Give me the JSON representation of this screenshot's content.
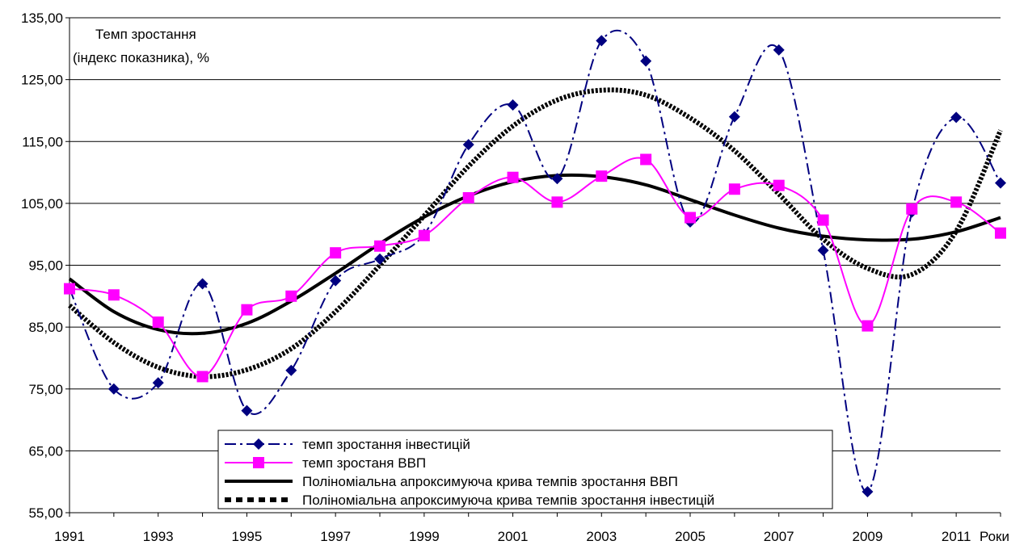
{
  "chart_data": {
    "type": "line",
    "ylabel_line1": "Темп зростання",
    "ylabel_line2": "(індекс показника), %",
    "xlabel": "Роки",
    "ylim": [
      55,
      135
    ],
    "xlim": [
      1991,
      2012
    ],
    "yticks": [
      "55,00",
      "65,00",
      "75,00",
      "85,00",
      "95,00",
      "105,00",
      "115,00",
      "125,00",
      "135,00"
    ],
    "xticks": [
      "1991",
      "1993",
      "1995",
      "1997",
      "1999",
      "2001",
      "2003",
      "2005",
      "2007",
      "2009",
      "2011"
    ],
    "grid": true,
    "legend_position": "bottom-center",
    "x": [
      1991,
      1992,
      1993,
      1994,
      1995,
      1996,
      1997,
      1998,
      1999,
      2000,
      2001,
      2002,
      2003,
      2004,
      2005,
      2006,
      2007,
      2008,
      2009,
      2010,
      2011,
      2012
    ],
    "series": [
      {
        "name": "темп зростання інвестицій",
        "color": "#000080",
        "style": "dash-dot",
        "marker": "diamond",
        "values": [
          91.2,
          75.0,
          76.0,
          92.0,
          71.5,
          78.0,
          92.5,
          96.0,
          100.0,
          114.5,
          120.9,
          109.0,
          131.3,
          128.0,
          102.0,
          119.0,
          129.8,
          97.4,
          58.4,
          103.6,
          118.9,
          108.3
        ]
      },
      {
        "name": "темп зростаня ВВП",
        "color": "#ff00ff",
        "style": "solid",
        "marker": "square",
        "values": [
          91.2,
          90.2,
          85.8,
          77.0,
          87.8,
          90.0,
          97.0,
          98.1,
          99.8,
          105.9,
          109.2,
          105.2,
          109.4,
          112.1,
          102.7,
          107.3,
          107.9,
          102.3,
          85.2,
          104.1,
          105.2,
          100.2
        ]
      },
      {
        "name": "Поліноміальна апроксимуюча крива темпів зростання ВВП",
        "color": "#000000",
        "style": "thick-solid",
        "values": [
          92.8,
          87.5,
          84.6,
          84.0,
          85.6,
          89.2,
          93.7,
          98.5,
          102.8,
          106.2,
          108.5,
          109.5,
          109.3,
          108.0,
          105.6,
          103.1,
          101.0,
          99.7,
          99.1,
          99.2,
          100.4,
          102.7
        ]
      },
      {
        "name": "Поліноміальна апроксимуюча крива темпів зростання інвестицій",
        "color": "#000000",
        "style": "thick-dotted",
        "values": [
          88.5,
          82.5,
          78.5,
          77.0,
          78.1,
          81.5,
          87.5,
          95.0,
          103.0,
          111.0,
          117.5,
          121.7,
          123.3,
          122.5,
          118.8,
          113.5,
          106.5,
          99.2,
          94.5,
          93.5,
          100.5,
          116.8
        ]
      }
    ]
  }
}
